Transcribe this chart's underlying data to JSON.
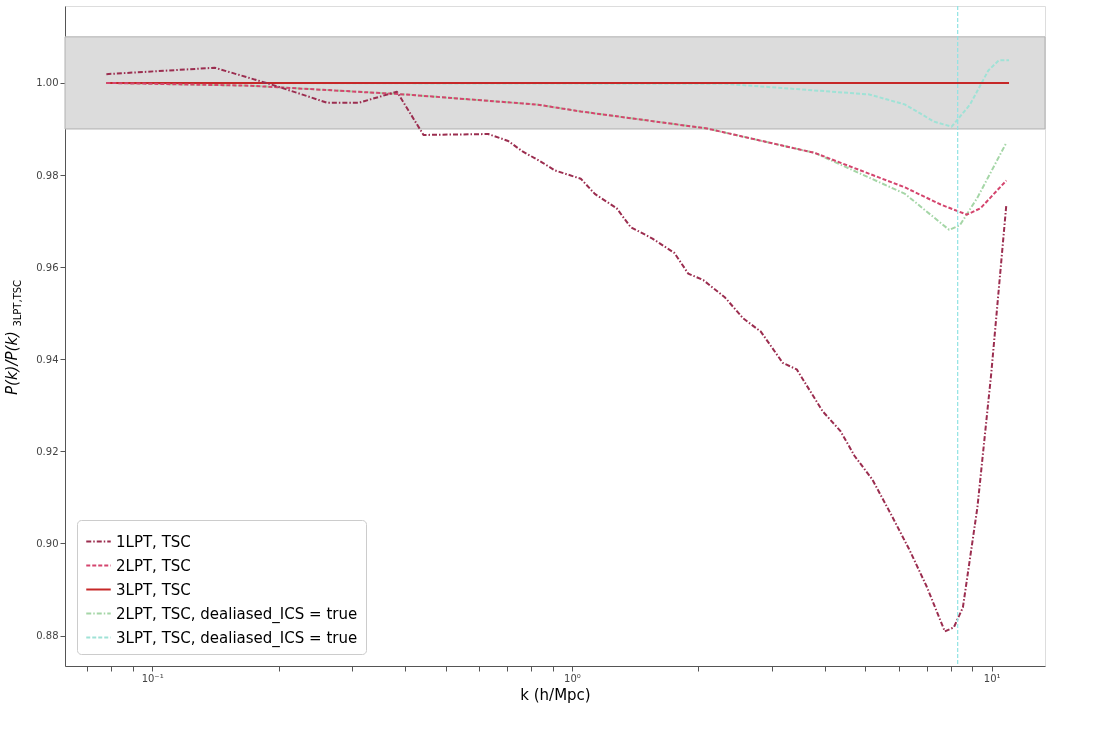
{
  "chart_data": {
    "type": "line",
    "xlabel": "k (h/Mpc)",
    "ylabel": "P(k)/P(k)$_{3LPT,TSC}$",
    "log": "x",
    "grid": false,
    "legend": "bottom left",
    "xlim": [
      0.062,
      13.4
    ],
    "ylim": [
      0.8734,
      1.0167
    ],
    "xticks": [
      {
        "value": 0.07,
        "label": null
      },
      {
        "value": 0.08,
        "label": null
      },
      {
        "value": 0.09,
        "label": null
      },
      {
        "value": 0.1,
        "label": "10⁻¹"
      },
      {
        "value": 0.2,
        "label": null
      },
      {
        "value": 0.3,
        "label": null
      },
      {
        "value": 0.4,
        "label": null
      },
      {
        "value": 0.5,
        "label": null
      },
      {
        "value": 0.6,
        "label": null
      },
      {
        "value": 0.7,
        "label": null
      },
      {
        "value": 0.8,
        "label": null
      },
      {
        "value": 0.9,
        "label": null
      },
      {
        "value": 1,
        "label": "10⁰"
      },
      {
        "value": 2,
        "label": null
      },
      {
        "value": 3,
        "label": null
      },
      {
        "value": 4,
        "label": null
      },
      {
        "value": 5,
        "label": null
      },
      {
        "value": 6,
        "label": null
      },
      {
        "value": 7,
        "label": null
      },
      {
        "value": 8,
        "label": null
      },
      {
        "value": 9,
        "label": null
      },
      {
        "value": 10,
        "label": "10¹"
      }
    ],
    "yticks": [
      0.88,
      {
        "value": 0.9,
        "label": "0.90"
      },
      0.92,
      0.94,
      0.96,
      0.98,
      {
        "value": 1.0,
        "label": "1.00"
      }
    ],
    "bands": [
      {
        "axis": "y",
        "from": 0.99,
        "to": 1.01,
        "color": "#dcdcdc"
      }
    ],
    "ref_lines": [
      {
        "axis": "x",
        "value": 8.3,
        "color": "#8fe3e3",
        "line_style": "dashed"
      }
    ],
    "series": [
      {
        "name": "1LPT, TSC",
        "color": "#9b2d4f",
        "line_style": "dashdot",
        "x": [
          0.0778,
          0.141,
          0.19,
          0.224,
          0.261,
          0.311,
          0.383,
          0.443,
          0.632,
          0.705,
          0.761,
          0.858,
          0.911,
          1.05,
          1.134,
          1.278,
          1.38,
          1.556,
          1.754,
          1.893,
          2.055,
          2.317,
          2.557,
          2.819,
          3.18,
          3.433,
          3.958,
          4.364,
          4.715,
          5.197,
          5.76,
          6.356,
          7.006,
          7.736,
          8.128,
          8.54,
          9.25,
          9.98,
          10.84
        ],
        "values": [
          1.0019,
          1.0033,
          0.9998,
          0.9977,
          0.9957,
          0.9957,
          0.9981,
          0.9887,
          0.9889,
          0.9874,
          0.9852,
          0.9825,
          0.981,
          0.9792,
          0.9759,
          0.9728,
          0.9687,
          0.9662,
          0.9631,
          0.9586,
          0.9572,
          0.9534,
          0.9489,
          0.946,
          0.9392,
          0.9378,
          0.9287,
          0.9244,
          0.919,
          0.9139,
          0.9063,
          0.8988,
          0.8906,
          0.8809,
          0.8818,
          0.8861,
          0.9079,
          0.937,
          0.9736
        ]
      },
      {
        "name": "2LPT, TSC",
        "color": "#d4456e",
        "line_style": "dashed",
        "x": [
          0.0778,
          0.171,
          0.4,
          0.826,
          1.05,
          2.1,
          3.79,
          6.22,
          7.56,
          8.73,
          9.41,
          10.84
        ],
        "values": [
          1.0,
          0.9994,
          0.9975,
          0.9953,
          0.9938,
          0.9901,
          0.9848,
          0.9773,
          0.9736,
          0.9714,
          0.9728,
          0.9788
        ]
      },
      {
        "name": "3LPT, TSC",
        "color": "#c62828",
        "line_style": "solid",
        "x": [
          0.0778,
          11.0
        ],
        "values": [
          1.0,
          1.0
        ]
      },
      {
        "name": "2LPT, TSC, dealiased_ICS = true",
        "color": "#a5d6a7",
        "line_style": "dashdot",
        "x": [
          0.0778,
          0.171,
          0.4,
          0.826,
          1.05,
          2.1,
          3.79,
          6.22,
          7.92,
          8.4,
          9.25,
          10.84
        ],
        "values": [
          1.0,
          0.9994,
          0.9975,
          0.9953,
          0.9938,
          0.9901,
          0.9848,
          0.9759,
          0.9681,
          0.9691,
          0.9751,
          0.987
        ]
      },
      {
        "name": "3LPT, TSC, dealiased_ICS = true",
        "color": "#9fe2d6",
        "line_style": "dashed",
        "x": [
          0.0778,
          2.317,
          5.11,
          6.22,
          7.29,
          8.03,
          8.88,
          9.82,
          10.4,
          11.0
        ],
        "values": [
          1.0,
          0.9998,
          0.9975,
          0.9953,
          0.9916,
          0.9905,
          0.9953,
          1.0027,
          1.0049,
          1.0049
        ]
      }
    ]
  }
}
